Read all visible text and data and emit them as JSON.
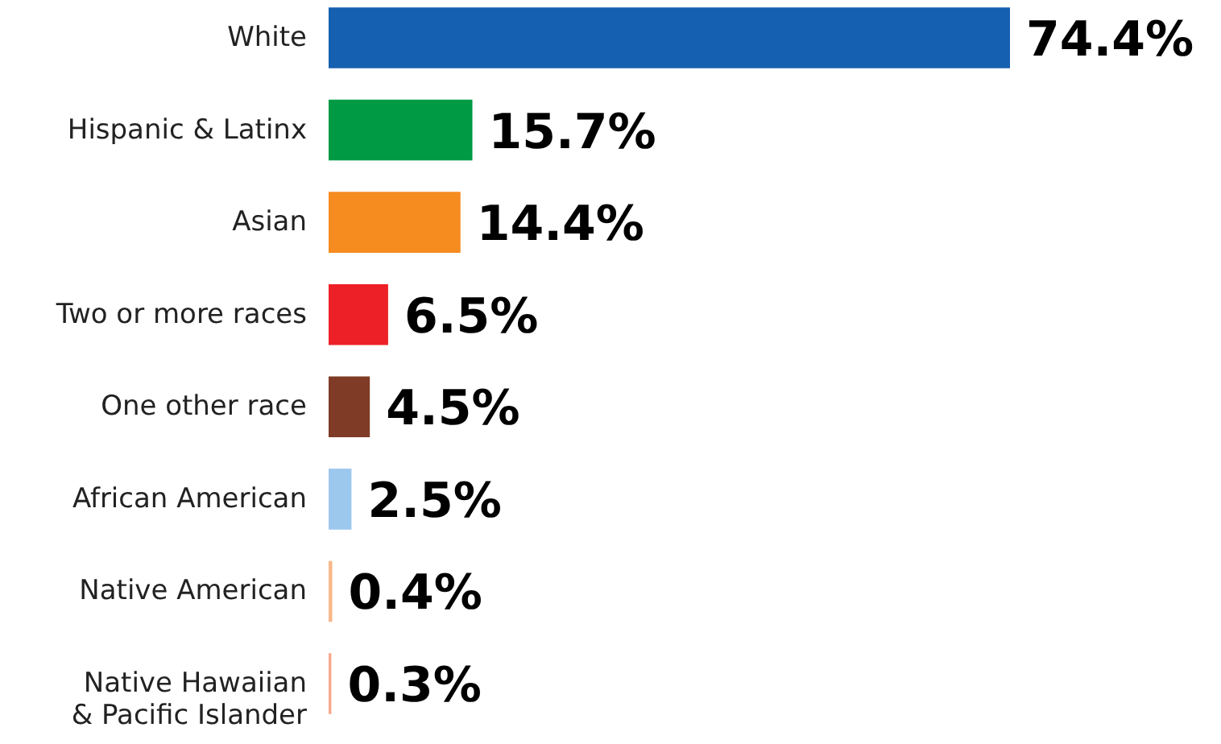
{
  "chart_data": {
    "type": "bar",
    "orientation": "horizontal",
    "categories": [
      "White",
      "Hispanic & Latinx",
      "Asian",
      "Two or more races",
      "One other race",
      "African American",
      "Native American",
      "Native Hawaiian & Pacific Islander"
    ],
    "values": [
      74.4,
      15.7,
      14.4,
      6.5,
      4.5,
      2.5,
      0.4,
      0.3
    ],
    "colors": [
      "#1560b0",
      "#009a44",
      "#f68b1f",
      "#ed2027",
      "#7f3b25",
      "#9dc8ee",
      "#f7b98a",
      "#f9a98b"
    ],
    "value_labels": [
      "74.4%",
      "15.7%",
      "14.4%",
      "6.5%",
      "4.5%",
      "2.5%",
      "0.4%",
      "0.3%"
    ]
  }
}
